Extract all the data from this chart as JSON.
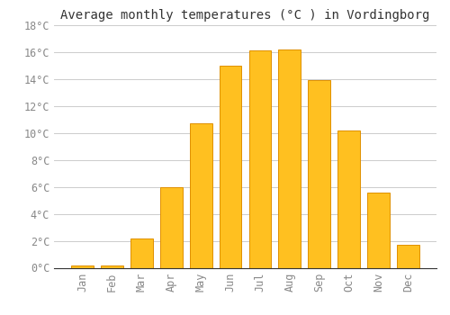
{
  "title": "Average monthly temperatures (°C ) in Vordingborg",
  "months": [
    "Jan",
    "Feb",
    "Mar",
    "Apr",
    "May",
    "Jun",
    "Jul",
    "Aug",
    "Sep",
    "Oct",
    "Nov",
    "Dec"
  ],
  "values": [
    0.2,
    0.2,
    2.2,
    6.0,
    10.7,
    15.0,
    16.1,
    16.2,
    13.9,
    10.2,
    5.6,
    1.7
  ],
  "bar_color": "#FFC020",
  "bar_edge_color": "#E09000",
  "background_color": "#FFFFFF",
  "grid_color": "#CCCCCC",
  "tick_label_color": "#888888",
  "title_color": "#333333",
  "ylim": [
    0,
    18
  ],
  "yticks": [
    0,
    2,
    4,
    6,
    8,
    10,
    12,
    14,
    16,
    18
  ],
  "ytick_labels": [
    "0°C",
    "2°C",
    "4°C",
    "6°C",
    "8°C",
    "10°C",
    "12°C",
    "14°C",
    "16°C",
    "18°C"
  ],
  "font_family": "monospace",
  "title_fontsize": 10,
  "tick_fontsize": 8.5,
  "bar_width": 0.75,
  "figsize": [
    5.0,
    3.5
  ],
  "dpi": 100
}
